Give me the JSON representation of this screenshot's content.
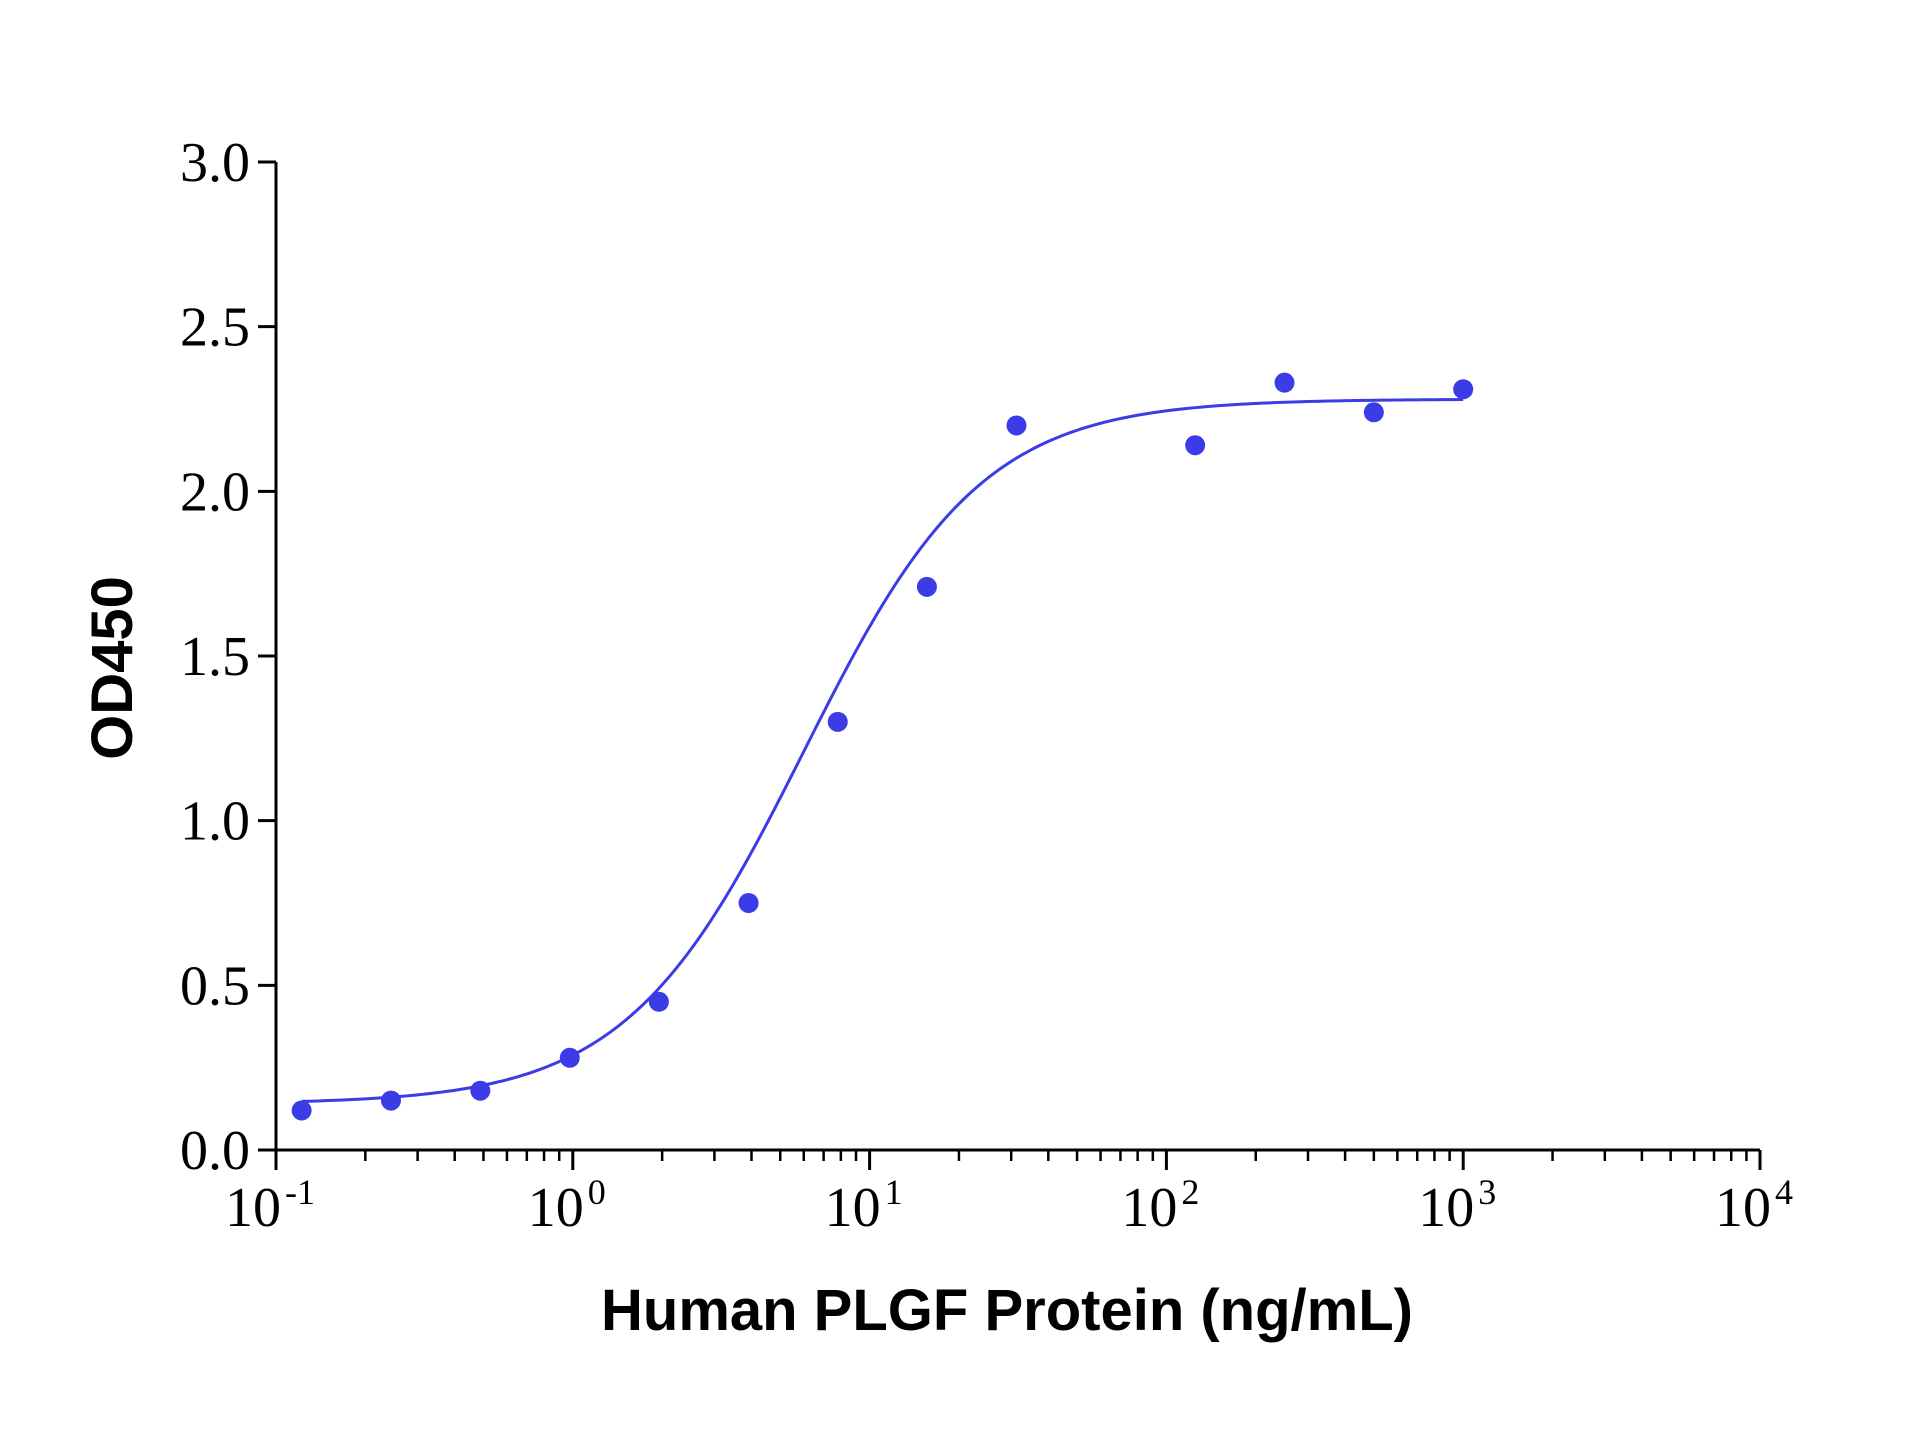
{
  "chart_data": {
    "type": "scatter",
    "xlabel": "Human PLGF Protein (ng/mL)",
    "ylabel": "OD450",
    "xscale": "log",
    "xlim": [
      0.1,
      10000
    ],
    "ylim": [
      0.0,
      3.0
    ],
    "x_ticks": [
      {
        "base": "10",
        "exp": "-1",
        "value": 0.1
      },
      {
        "base": "10",
        "exp": "0",
        "value": 1
      },
      {
        "base": "10",
        "exp": "1",
        "value": 10
      },
      {
        "base": "10",
        "exp": "2",
        "value": 100
      },
      {
        "base": "10",
        "exp": "3",
        "value": 1000
      },
      {
        "base": "10",
        "exp": "4",
        "value": 10000
      }
    ],
    "y_ticks": [
      {
        "label": "0.0",
        "value": 0.0
      },
      {
        "label": "0.5",
        "value": 0.5
      },
      {
        "label": "1.0",
        "value": 1.0
      },
      {
        "label": "1.5",
        "value": 1.5
      },
      {
        "label": "2.0",
        "value": 2.0
      },
      {
        "label": "2.5",
        "value": 2.5
      },
      {
        "label": "3.0",
        "value": 3.0
      }
    ],
    "grid": false,
    "series": [
      {
        "x": [
          0.122,
          0.244,
          0.488,
          0.977,
          1.95,
          3.91,
          7.81,
          15.6,
          31.25,
          125,
          250,
          500,
          1000
        ],
        "y": [
          0.12,
          0.15,
          0.18,
          0.28,
          0.45,
          0.75,
          1.3,
          1.71,
          2.2,
          2.14,
          2.33,
          2.24,
          2.31
        ]
      }
    ],
    "fit_curve": {
      "model": "4PL",
      "bottom": 0.14,
      "top": 2.28,
      "ec50": 6.0,
      "hill": 1.45,
      "x_range": [
        0.122,
        1000
      ]
    },
    "colors": {
      "series": "#3c3ce6",
      "axis": "#000000"
    }
  }
}
